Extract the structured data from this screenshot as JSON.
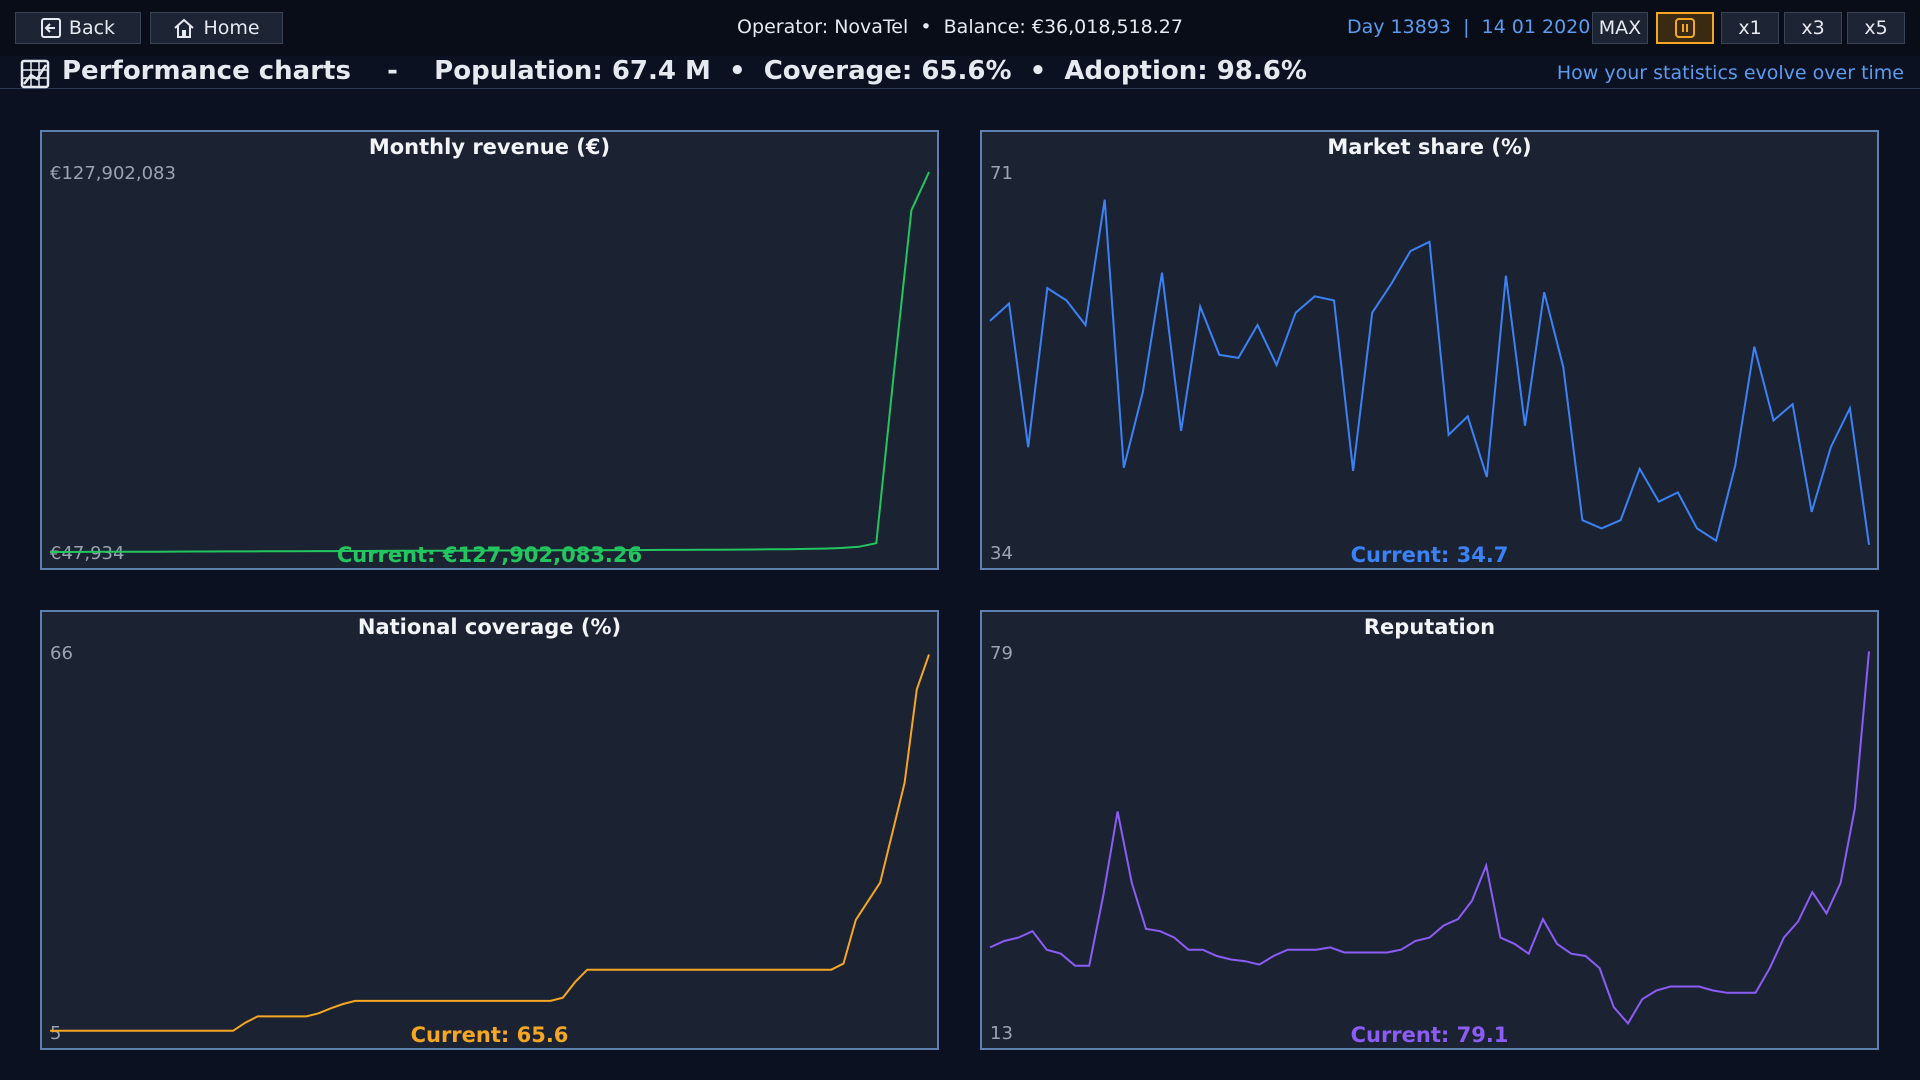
{
  "topbar": {
    "back": "Back",
    "home": "Home",
    "status": "Operator: NovaTel  •  Balance: €36,018,518.27",
    "date": "Day 13893  |  14 01 2020",
    "speeds": [
      "MAX",
      "x1",
      "x3",
      "x5"
    ]
  },
  "header": {
    "title": "Performance charts",
    "stats": "-    Population: 67.4 M  •  Coverage: 65.6%  •  Adoption: 98.6%",
    "subtitle": "How your statistics evolve over time"
  },
  "chart_data": [
    {
      "type": "line",
      "title": "Monthly revenue (€)",
      "color": "#22c55e",
      "annotation": "Current: €127,902,083.26",
      "ylim": [
        47934,
        127902083
      ],
      "yticks": [
        {
          "value": 47934,
          "label": "€47,934"
        },
        {
          "value": 127902083,
          "label": "€127,902,083"
        }
      ],
      "values": [
        47934,
        60000,
        80000,
        100000,
        120000,
        140000,
        160000,
        180000,
        200000,
        220000,
        240000,
        260000,
        280000,
        300000,
        320000,
        340000,
        360000,
        380000,
        400000,
        420000,
        440000,
        460000,
        480000,
        500000,
        520000,
        540000,
        560000,
        580000,
        600000,
        620000,
        640000,
        660000,
        680000,
        700000,
        720000,
        740000,
        760000,
        780000,
        800000,
        850000,
        900000,
        950000,
        1000000,
        1100000,
        1200000,
        1400000,
        1800000,
        3000000,
        60000000,
        115000000,
        127902083
      ]
    },
    {
      "type": "line",
      "title": "Market share (%)",
      "color": "#3b82f6",
      "annotation": "Current: 34.7",
      "ylim": [
        34,
        71
      ],
      "yticks": [
        34,
        71
      ],
      "values": [
        56.5,
        58.2,
        44.2,
        59.7,
        58.5,
        56.1,
        68.3,
        42.2,
        49.6,
        61.2,
        45.8,
        57.9,
        53.2,
        52.9,
        56.1,
        52.2,
        57.3,
        58.9,
        58.5,
        41.9,
        57.3,
        60.1,
        63.3,
        64.2,
        45.4,
        47.2,
        41.3,
        60.9,
        46.3,
        59.3,
        52,
        37.1,
        36.3,
        37.1,
        42.1,
        38.9,
        39.8,
        36.3,
        35.1,
        42.4,
        54,
        46.8,
        48.4,
        37.9,
        44.2,
        48,
        34.7
      ]
    },
    {
      "type": "line",
      "title": "National coverage (%)",
      "color": "#f5a623",
      "annotation": "Current: 65.6",
      "ylim": [
        5,
        66
      ],
      "yticks": [
        5,
        66
      ],
      "values": [
        5.2,
        5.2,
        5.2,
        5.2,
        5.2,
        5.2,
        5.2,
        5.2,
        5.2,
        5.2,
        5.2,
        5.2,
        5.2,
        5.2,
        5.2,
        5.2,
        6.5,
        7.5,
        7.5,
        7.5,
        7.5,
        7.5,
        8,
        8.8,
        9.5,
        10,
        10,
        10,
        10,
        10,
        10,
        10,
        10,
        10,
        10,
        10,
        10,
        10,
        10,
        10,
        10,
        10,
        10.5,
        13,
        15,
        15,
        15,
        15,
        15,
        15,
        15,
        15,
        15,
        15,
        15,
        15,
        15,
        15,
        15,
        15,
        15,
        15,
        15,
        15,
        15,
        16,
        23,
        26,
        29,
        37,
        45,
        60,
        65.6
      ]
    },
    {
      "type": "line",
      "title": "Reputation",
      "color": "#8b5cf6",
      "annotation": "Current: 79.1",
      "ylim": [
        13,
        79
      ],
      "yticks": [
        13,
        79
      ],
      "values": [
        27.7,
        28.8,
        29.4,
        30.5,
        27.3,
        26.6,
        24.5,
        24.5,
        36.8,
        51.3,
        38.9,
        30.9,
        30.5,
        29.4,
        27.3,
        27.3,
        26.2,
        25.6,
        25.3,
        24.7,
        26.2,
        27.3,
        27.3,
        27.3,
        27.7,
        26.8,
        26.8,
        26.8,
        26.8,
        27.3,
        28.8,
        29.4,
        31.5,
        32.6,
        35.8,
        41.9,
        29.4,
        28.3,
        26.6,
        32.6,
        28.3,
        26.6,
        26.2,
        24.1,
        17.3,
        14.5,
        18.7,
        20.2,
        20.9,
        20.9,
        20.9,
        20.2,
        19.8,
        19.8,
        19.8,
        24.1,
        29.4,
        32.2,
        37.3,
        33.6,
        38.9,
        51.8,
        79.1
      ]
    }
  ]
}
